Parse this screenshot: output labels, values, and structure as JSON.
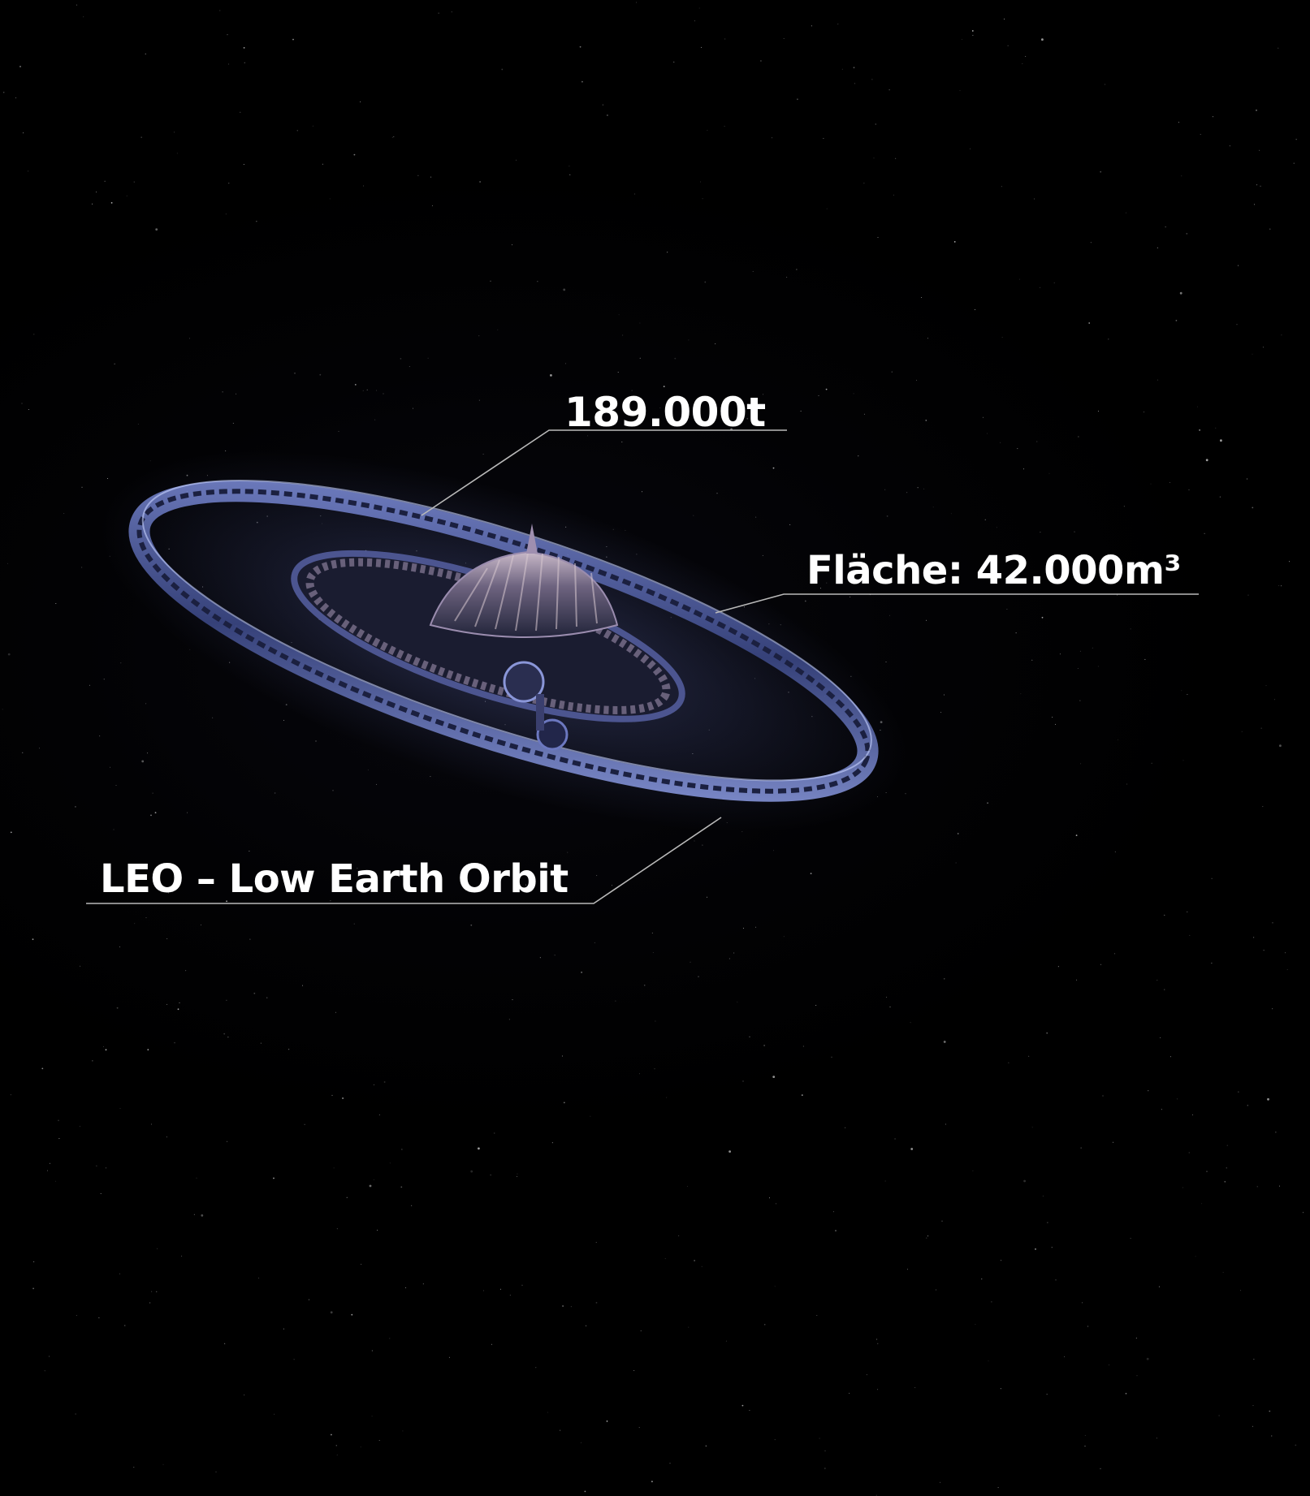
{
  "annotations": {
    "mass": "189.000t",
    "area": "Fläche: 42.000m³",
    "orbit": "LEO – Low Earth Orbit"
  },
  "scene": {
    "background": "starfield",
    "subject": "space-station"
  },
  "colors": {
    "background": "#000000",
    "text": "#ffffff",
    "leader_line": "#b9b9b9",
    "station_hull": "#3c4a8c",
    "station_glow": "#7f8fe0"
  }
}
